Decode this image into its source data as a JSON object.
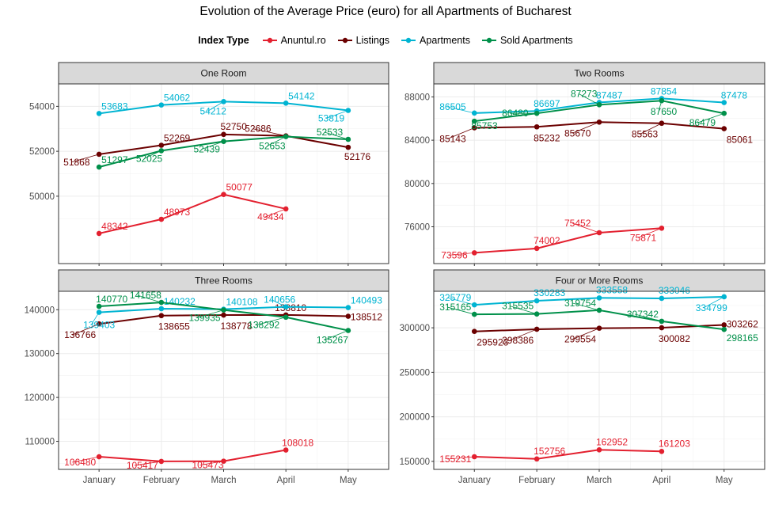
{
  "chart_data": {
    "type": "line",
    "title": "Evolution of the Average Price (euro) for all Apartments of Bucharest",
    "legend": {
      "title": "Index Type",
      "placement": "top"
    },
    "grid": true,
    "categories": [
      "January",
      "February",
      "March",
      "April",
      "May"
    ],
    "series_names": [
      "Anuntul.ro",
      "Listings",
      "Apartments",
      "Sold Apartments"
    ],
    "colors": {
      "Anuntul.ro": "#e3202f",
      "Listings": "#6b0000",
      "Apartments": "#00b4d2",
      "Sold Apartments": "#00904a"
    },
    "panels": [
      {
        "title": "One Room",
        "ylim": [
          47000,
          55000
        ],
        "yticks": [
          50000,
          52000,
          54000
        ],
        "series": [
          {
            "name": "Anuntul.ro",
            "values": [
              48342,
              48973,
              50077,
              49434,
              null
            ],
            "labels": [
              "48342",
              "48973",
              "50077",
              "49434",
              ""
            ]
          },
          {
            "name": "Listings",
            "values": [
              51868,
              52269,
              52750,
              52686,
              52176
            ],
            "labels": [
              "51868",
              "52269",
              "52750",
              "52686",
              "52176"
            ]
          },
          {
            "name": "Apartments",
            "values": [
              53683,
              54062,
              54212,
              54142,
              53819
            ],
            "labels": [
              "53683",
              "54062",
              "54212",
              "54142",
              "53819"
            ]
          },
          {
            "name": "Sold Apartments",
            "values": [
              51297,
              52025,
              52439,
              52653,
              52533
            ],
            "labels": [
              "51297",
              "52025",
              "52439",
              "52653",
              "52533"
            ]
          }
        ]
      },
      {
        "title": "Two Rooms",
        "ylim": [
          72600,
          89200
        ],
        "yticks": [
          76000,
          80000,
          84000,
          88000
        ],
        "series": [
          {
            "name": "Anuntul.ro",
            "values": [
              73596,
              74002,
              75452,
              75871,
              null
            ],
            "labels": [
              "73596",
              "74002",
              "75452",
              "75871",
              ""
            ]
          },
          {
            "name": "Listings",
            "values": [
              85143,
              85232,
              85670,
              85563,
              85061
            ],
            "labels": [
              "85143",
              "85232",
              "85670",
              "85563",
              "85061"
            ]
          },
          {
            "name": "Apartments",
            "values": [
              86505,
              86697,
              87487,
              87854,
              87478
            ],
            "labels": [
              "86505",
              "86697",
              "87487",
              "87854",
              "87478"
            ]
          },
          {
            "name": "Sold Apartments",
            "values": [
              85753,
              86480,
              87273,
              87650,
              86479
            ],
            "labels": [
              "85753",
              "86480",
              "87273",
              "87650",
              "86479"
            ]
          }
        ]
      },
      {
        "title": "Three Rooms",
        "ylim": [
          103600,
          144200
        ],
        "yticks": [
          110000,
          120000,
          130000,
          140000
        ],
        "series": [
          {
            "name": "Anuntul.ro",
            "values": [
              106480,
              105417,
              105473,
              108018,
              null
            ],
            "labels": [
              "106480",
              "105417",
              "105473",
              "108018",
              ""
            ]
          },
          {
            "name": "Listings",
            "values": [
              136766,
              138655,
              138778,
              138810,
              138512
            ],
            "labels": [
              "136766",
              "138655",
              "138778",
              "138810",
              "138512"
            ]
          },
          {
            "name": "Apartments",
            "values": [
              139403,
              140232,
              140108,
              140656,
              140493
            ],
            "labels": [
              "139403",
              "140232",
              "140108",
              "140656",
              "140493"
            ]
          },
          {
            "name": "Sold Apartments",
            "values": [
              140770,
              141658,
              139935,
              138292,
              135267
            ],
            "labels": [
              "140770",
              "141658",
              "139935",
              "138292",
              "135267"
            ]
          }
        ]
      },
      {
        "title": "Four or More Rooms",
        "ylim": [
          141000,
          341000
        ],
        "yticks": [
          150000,
          200000,
          250000,
          300000
        ],
        "series": [
          {
            "name": "Anuntul.ro",
            "values": [
              155231,
              152756,
              162952,
              161203,
              null
            ],
            "labels": [
              "155231",
              "152756",
              "162952",
              "161203",
              ""
            ]
          },
          {
            "name": "Listings",
            "values": [
              295923,
              298386,
              299554,
              300082,
              303262
            ],
            "labels": [
              "295923",
              "298386",
              "299554",
              "300082",
              "303262"
            ]
          },
          {
            "name": "Apartments",
            "values": [
              325779,
              330283,
              333558,
              333046,
              334799
            ],
            "labels": [
              "325779",
              "330283",
              "333558",
              "333046",
              "334799"
            ]
          },
          {
            "name": "Sold Apartments",
            "values": [
              315165,
              315535,
              319754,
              307342,
              298165
            ],
            "labels": [
              "315165",
              "315535",
              "319754",
              "307342",
              "298165"
            ]
          }
        ]
      }
    ]
  }
}
